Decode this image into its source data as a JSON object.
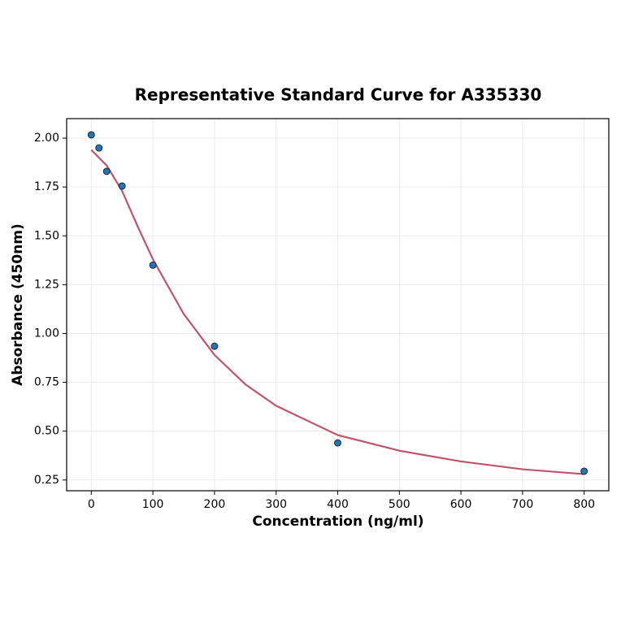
{
  "chart_data": {
    "type": "scatter",
    "title": "Representative Standard Curve for A335330",
    "x_label": "Concentration (ng/ml)",
    "y_label": "Absorbance (450nm)",
    "points": {
      "x": [
        0,
        12.5,
        25,
        50,
        100,
        200,
        400,
        800
      ],
      "y": [
        2.017,
        1.95,
        1.83,
        1.755,
        1.35,
        0.935,
        0.44,
        0.295
      ],
      "color": "#1f77b4"
    },
    "curve": {
      "x": [
        0,
        25,
        50,
        75,
        100,
        150,
        200,
        250,
        300,
        400,
        500,
        600,
        700,
        800
      ],
      "y": [
        1.94,
        1.86,
        1.73,
        1.55,
        1.38,
        1.1,
        0.89,
        0.74,
        0.63,
        0.48,
        0.4,
        0.345,
        0.305,
        0.28
      ],
      "color": "#c0546a"
    },
    "xlim": [
      -40,
      840
    ],
    "ylim": [
      0.195,
      2.1
    ],
    "xticks": [
      0,
      100,
      200,
      300,
      400,
      500,
      600,
      700,
      800
    ],
    "yticks": [
      0.25,
      {
        "value": 0.5,
        "label": "0.50"
      },
      0.75,
      {
        "value": 1,
        "label": "1.00"
      },
      1.25,
      {
        "value": 1.5,
        "label": "1.50"
      },
      1.75,
      {
        "value": 2,
        "label": "2.00"
      }
    ],
    "grid": true
  }
}
